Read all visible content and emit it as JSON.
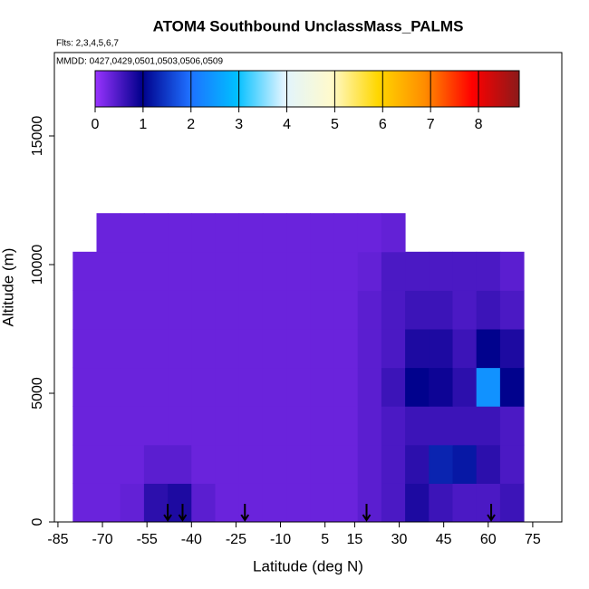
{
  "chart_data": {
    "type": "heatmap",
    "title": "ATOM4 Southbound UnclassMass_PALMS",
    "subtitle": "Flts: 2,3,4,5,6,7",
    "annotation": "MMDD: 0427,0429,0501,0503,0506,0509",
    "x_label": "Latitude (deg N)",
    "y_label": "Altitude (m)",
    "xlim": [
      -86.2,
      84.8
    ],
    "ylim": [
      0,
      18240
    ],
    "xticks": [
      -85,
      -70,
      -55,
      -40,
      -25,
      -10,
      5,
      15,
      30,
      45,
      60,
      75
    ],
    "yticks": [
      0,
      5000,
      10000,
      15000
    ],
    "lat_bins": [
      -80,
      -72,
      -64,
      -56,
      -48,
      -40,
      -32,
      -24,
      -16,
      -8,
      0,
      8,
      16,
      24,
      32,
      40,
      48,
      56,
      64,
      72
    ],
    "alt_bins": [
      0,
      1500,
      3000,
      4500,
      6000,
      7500,
      9000,
      10500,
      12000
    ],
    "values": [
      [
        0.3,
        0.3,
        0.35,
        0.7,
        0.8,
        0.4,
        0.3,
        0.3,
        0.3,
        0.3,
        0.3,
        0.3,
        0.4,
        0.5,
        0.8,
        0.6,
        0.5,
        0.5,
        0.6
      ],
      [
        0.3,
        0.3,
        0.3,
        0.4,
        0.4,
        0.3,
        0.3,
        0.3,
        0.3,
        0.3,
        0.3,
        0.3,
        0.4,
        0.5,
        0.7,
        1.3,
        1.2,
        0.7,
        0.5
      ],
      [
        0.3,
        0.3,
        0.3,
        0.3,
        0.3,
        0.3,
        0.3,
        0.3,
        0.3,
        0.3,
        0.3,
        0.3,
        0.4,
        0.5,
        0.6,
        0.6,
        0.6,
        0.6,
        0.5
      ],
      [
        0.3,
        0.3,
        0.3,
        0.3,
        0.3,
        0.3,
        0.3,
        0.3,
        0.3,
        0.3,
        0.3,
        0.3,
        0.4,
        0.6,
        1.0,
        0.9,
        0.7,
        2.4,
        1.0
      ],
      [
        0.3,
        0.3,
        0.3,
        0.3,
        0.3,
        0.3,
        0.3,
        0.3,
        0.3,
        0.3,
        0.3,
        0.3,
        0.4,
        0.5,
        0.8,
        0.8,
        0.6,
        1.0,
        0.8
      ],
      [
        0.3,
        0.3,
        0.3,
        0.3,
        0.3,
        0.3,
        0.3,
        0.3,
        0.3,
        0.3,
        0.3,
        0.3,
        0.4,
        0.5,
        0.6,
        0.6,
        0.5,
        0.6,
        0.5
      ],
      [
        0.3,
        0.3,
        0.3,
        0.3,
        0.3,
        0.3,
        0.3,
        0.3,
        0.3,
        0.3,
        0.3,
        0.3,
        0.35,
        0.5,
        0.5,
        0.5,
        0.5,
        0.5,
        0.4
      ],
      [
        null,
        0.3,
        0.3,
        0.3,
        0.3,
        0.3,
        0.3,
        0.3,
        0.3,
        0.3,
        0.3,
        0.3,
        0.3,
        0.35,
        null,
        null,
        null,
        null,
        null
      ]
    ],
    "colorbar": {
      "lim": [
        0,
        8.85
      ],
      "ticks": [
        0,
        1,
        2,
        3,
        4,
        5,
        6,
        7,
        8
      ],
      "colors": [
        "#9933ff",
        "#00008b",
        "#1e6fff",
        "#00bfff",
        "#e0f4ff",
        "#fffacd",
        "#ffd700",
        "#ff8c00",
        "#ff0000",
        "#8b1a1a"
      ]
    },
    "arrows": [
      -48,
      -43,
      -22,
      19,
      61
    ]
  }
}
